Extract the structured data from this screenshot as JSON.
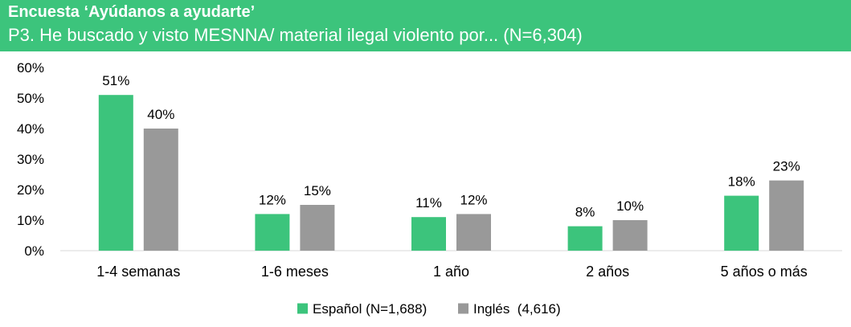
{
  "header": {
    "title": "Encuesta ‘Ayúdanos a ayudarte’",
    "subtitle": "P3. He buscado y visto MESNNA/ material ilegal violento por... (N=6,304)"
  },
  "colors": {
    "header_bg": "#3cc47c",
    "series_1": "#3cc47c",
    "series_2": "#999999",
    "axis": "#d9d9d9"
  },
  "chart_data": {
    "type": "bar",
    "categories": [
      "1-4 semanas",
      "1-6 meses",
      "1 año",
      "2 años",
      "5 años o más"
    ],
    "series": [
      {
        "name": "Español (N=1,688)",
        "values": [
          51,
          12,
          11,
          8,
          18
        ],
        "labels": [
          "51%",
          "12%",
          "11%",
          "8%",
          "18%"
        ]
      },
      {
        "name": "Inglés  (4,616)",
        "values": [
          40,
          15,
          12,
          10,
          23
        ],
        "labels": [
          "40%",
          "15%",
          "12%",
          "10%",
          "23%"
        ]
      }
    ],
    "yticks": [
      "0%",
      "10%",
      "20%",
      "30%",
      "40%",
      "50%",
      "60%"
    ],
    "ylim": [
      0,
      60
    ],
    "grid": false,
    "legend_position": "bottom"
  }
}
